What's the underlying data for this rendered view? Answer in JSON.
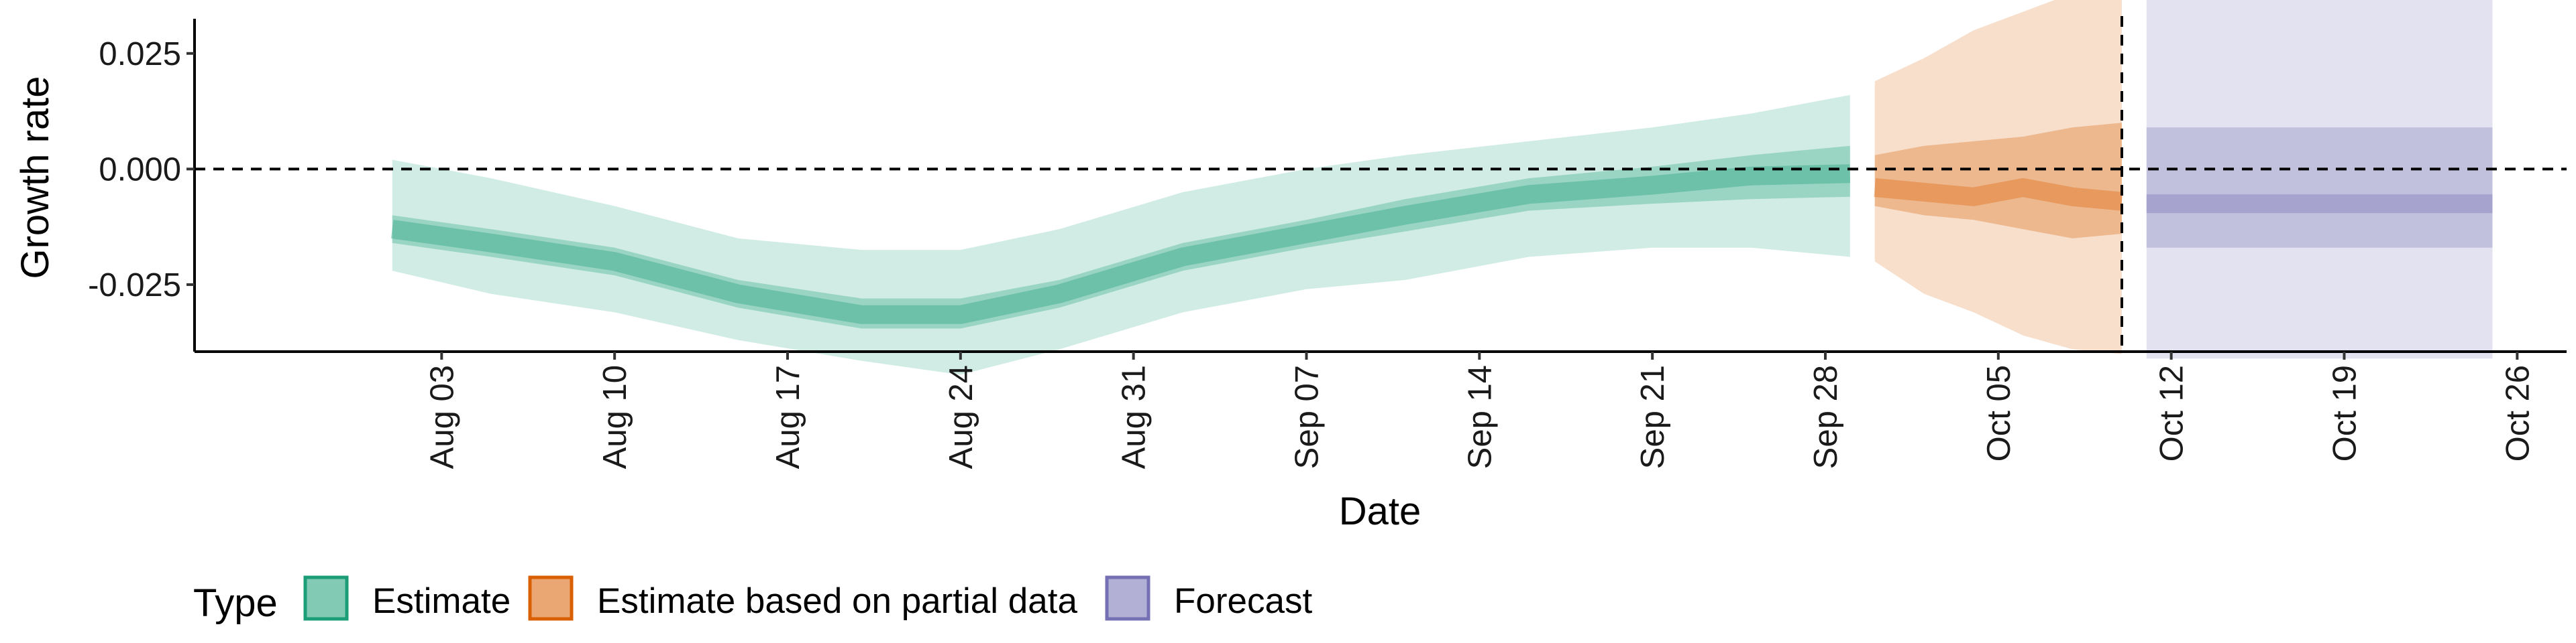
{
  "chart_data": {
    "type": "area",
    "xlabel": "Date",
    "ylabel": "Growth rate",
    "x_range": [
      "2020-07-24",
      "2020-10-28"
    ],
    "y_range": [
      -0.0395,
      0.0325
    ],
    "y_ticks": [
      {
        "value": 0.025,
        "label": "0.025"
      },
      {
        "value": 0.0,
        "label": "0.000"
      },
      {
        "value": -0.025,
        "label": "-0.025"
      }
    ],
    "x_ticks": [
      {
        "date": "2020-08-03",
        "label": "Aug 03"
      },
      {
        "date": "2020-08-10",
        "label": "Aug 10"
      },
      {
        "date": "2020-08-17",
        "label": "Aug 17"
      },
      {
        "date": "2020-08-24",
        "label": "Aug 24"
      },
      {
        "date": "2020-08-31",
        "label": "Aug 31"
      },
      {
        "date": "2020-09-07",
        "label": "Sep 07"
      },
      {
        "date": "2020-09-14",
        "label": "Sep 14"
      },
      {
        "date": "2020-09-21",
        "label": "Sep 21"
      },
      {
        "date": "2020-09-28",
        "label": "Sep 28"
      },
      {
        "date": "2020-10-05",
        "label": "Oct 05"
      },
      {
        "date": "2020-10-12",
        "label": "Oct 12"
      },
      {
        "date": "2020-10-19",
        "label": "Oct 19"
      },
      {
        "date": "2020-10-26",
        "label": "Oct 26"
      }
    ],
    "reference_lines": [
      {
        "orientation": "horizontal",
        "y": 0,
        "style": "dashed"
      },
      {
        "orientation": "vertical",
        "x": "2020-10-10",
        "style": "dashed"
      }
    ],
    "legend": {
      "title": "Type",
      "position": "bottom-left",
      "entries": [
        "Estimate",
        "Estimate based on partial data",
        "Forecast"
      ]
    },
    "grid": false,
    "series": [
      {
        "name": "Estimate",
        "fill": "#1b9e77",
        "edge": "#1b9e77",
        "x": [
          "2020-08-01",
          "2020-08-05",
          "2020-08-10",
          "2020-08-15",
          "2020-08-20",
          "2020-08-24",
          "2020-08-28",
          "2020-09-02",
          "2020-09-07",
          "2020-09-11",
          "2020-09-16",
          "2020-09-21",
          "2020-09-25",
          "2020-09-29"
        ],
        "median": [
          -0.013,
          -0.016,
          -0.02,
          -0.027,
          -0.0315,
          -0.0315,
          -0.027,
          -0.019,
          -0.014,
          -0.01,
          -0.0055,
          -0.0035,
          -0.0015,
          -0.001
        ],
        "lower50": [
          -0.016,
          -0.019,
          -0.023,
          -0.03,
          -0.0345,
          -0.0345,
          -0.03,
          -0.022,
          -0.017,
          -0.0135,
          -0.009,
          -0.0075,
          -0.0065,
          -0.006
        ],
        "upper50": [
          -0.01,
          -0.013,
          -0.017,
          -0.024,
          -0.028,
          -0.028,
          -0.024,
          -0.016,
          -0.011,
          -0.0065,
          -0.002,
          0.0005,
          0.003,
          0.005
        ],
        "lower90": [
          -0.022,
          -0.027,
          -0.031,
          -0.037,
          -0.0415,
          -0.0445,
          -0.039,
          -0.031,
          -0.026,
          -0.024,
          -0.019,
          -0.017,
          -0.017,
          -0.019
        ],
        "upper90": [
          0.002,
          -0.002,
          -0.008,
          -0.015,
          -0.0175,
          -0.0175,
          -0.013,
          -0.005,
          0.0,
          0.003,
          0.006,
          0.009,
          0.012,
          0.016
        ]
      },
      {
        "name": "Estimate based on partial data",
        "fill": "#d95f02",
        "edge": "#d95f02",
        "x": [
          "2020-09-30",
          "2020-10-02",
          "2020-10-04",
          "2020-10-06",
          "2020-10-08",
          "2020-10-10"
        ],
        "median": [
          -0.004,
          -0.005,
          -0.006,
          -0.004,
          -0.006,
          -0.007
        ],
        "lower50": [
          -0.008,
          -0.01,
          -0.011,
          -0.013,
          -0.015,
          -0.014
        ],
        "upper50": [
          0.003,
          0.005,
          0.006,
          0.007,
          0.009,
          0.01
        ],
        "lower90": [
          -0.02,
          -0.027,
          -0.031,
          -0.036,
          -0.039,
          -0.04
        ],
        "upper90": [
          0.019,
          0.024,
          0.03,
          0.034,
          0.038,
          0.039
        ]
      },
      {
        "name": "Forecast",
        "fill": "#7570b3",
        "edge": "#7570b3",
        "x": [
          "2020-10-11",
          "2020-10-25"
        ],
        "median": [
          -0.0075,
          -0.0075
        ],
        "lower50": [
          -0.017,
          -0.017
        ],
        "upper50": [
          0.009,
          0.009
        ],
        "lower90": [
          -0.041,
          -0.041
        ],
        "upper90": [
          0.039,
          0.039
        ]
      }
    ]
  }
}
